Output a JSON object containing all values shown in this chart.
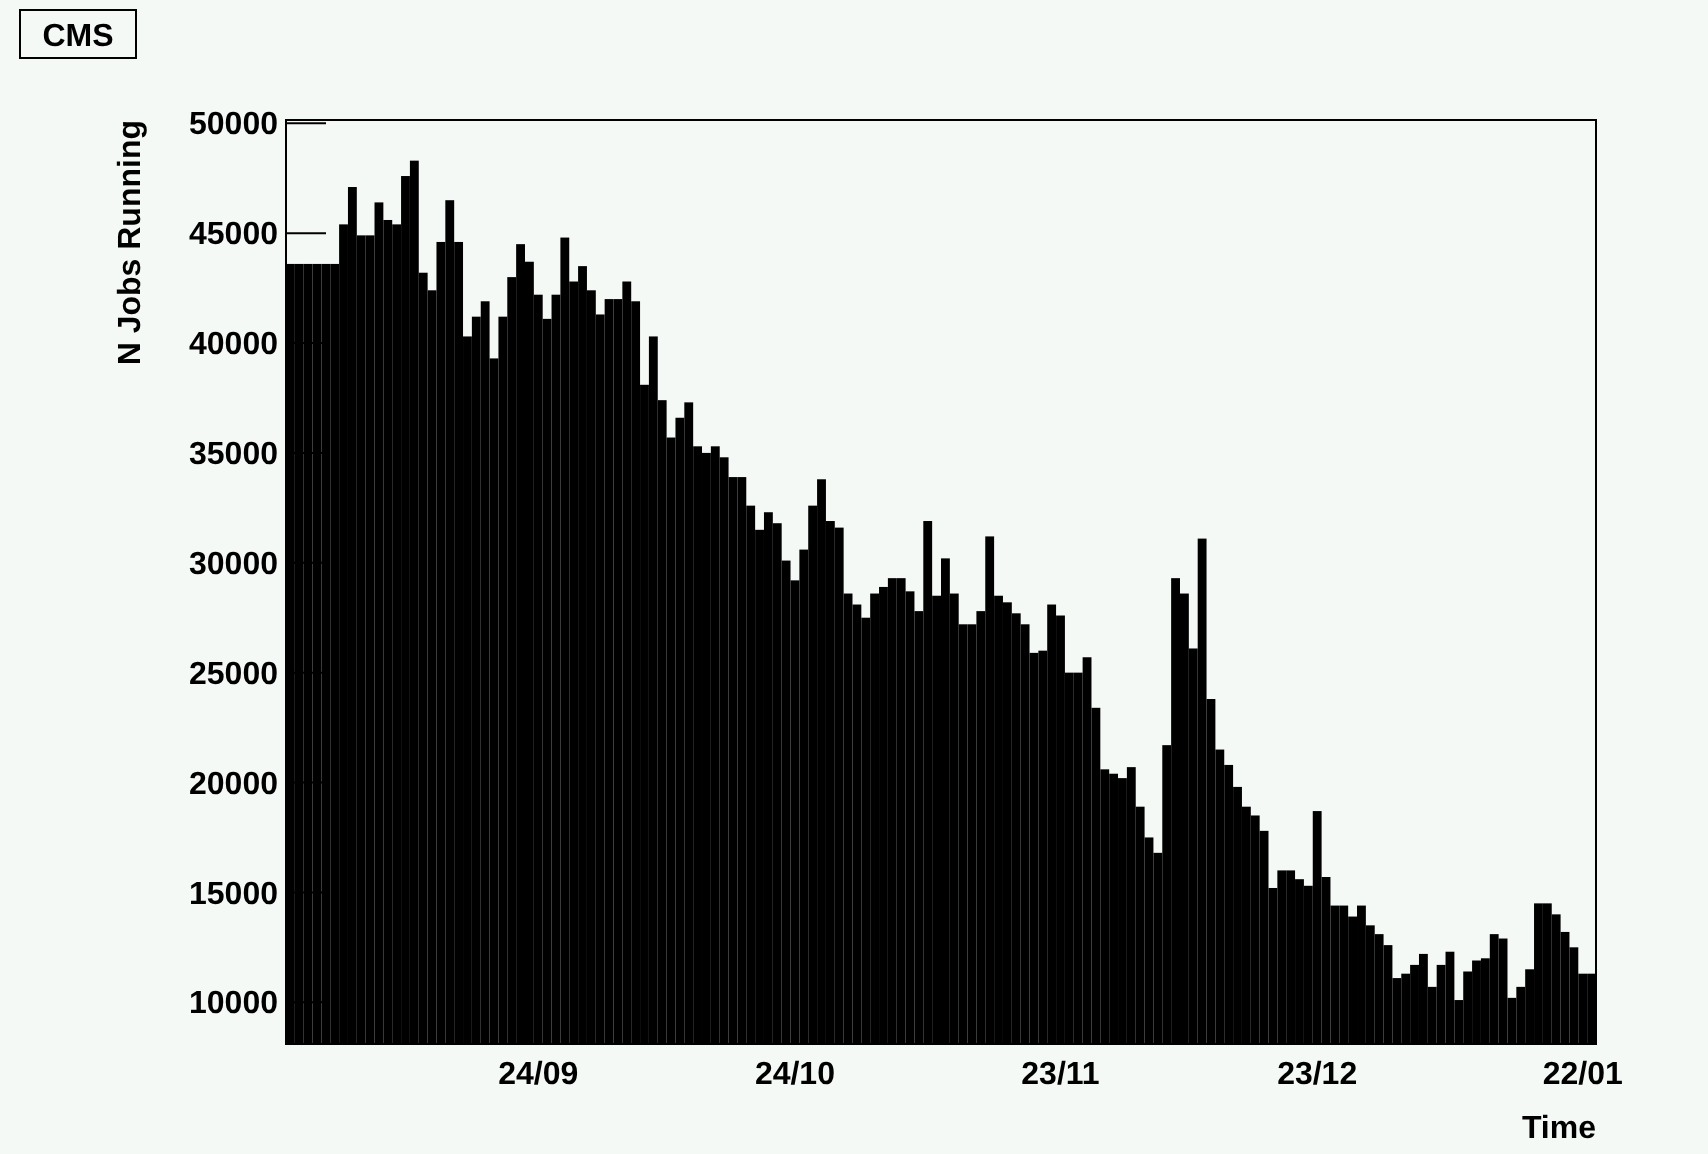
{
  "chart_data": {
    "type": "bar",
    "title": "CMS",
    "xlabel": "Time",
    "ylabel": "N Jobs Running",
    "color": "#000000",
    "categories": [
      null,
      null,
      null,
      null,
      null,
      null,
      null,
      null,
      null,
      null,
      null,
      null,
      null,
      null,
      null,
      null,
      null,
      null,
      null,
      null,
      null,
      null,
      null,
      null,
      null,
      null,
      null,
      null,
      "24/09",
      null,
      null,
      null,
      null,
      null,
      null,
      null,
      null,
      null,
      null,
      null,
      null,
      null,
      null,
      null,
      null,
      null,
      null,
      null,
      null,
      null,
      null,
      null,
      null,
      null,
      null,
      null,
      null,
      "24/10",
      null,
      null,
      null,
      null,
      null,
      null,
      null,
      null,
      null,
      null,
      null,
      null,
      null,
      null,
      null,
      null,
      null,
      null,
      null,
      null,
      null,
      null,
      null,
      null,
      null,
      null,
      null,
      null,
      null,
      "23/11",
      null,
      null,
      null,
      null,
      null,
      null,
      null,
      null,
      null,
      null,
      null,
      null,
      null,
      null,
      null,
      null,
      null,
      null,
      null,
      null,
      null,
      null,
      null,
      null,
      null,
      null,
      null,
      null,
      "23/12",
      null,
      null,
      null,
      null,
      null,
      null,
      null,
      null,
      null,
      null,
      null,
      null,
      null,
      null,
      null,
      null,
      null,
      null,
      null,
      null,
      null,
      null,
      null,
      null,
      null,
      null,
      null,
      null,
      null,
      "22/01",
      null
    ],
    "values": [
      43600,
      43600,
      43600,
      43600,
      43600,
      43600,
      45400,
      47100,
      44900,
      44900,
      46400,
      45600,
      45400,
      47600,
      48300,
      43200,
      42400,
      44600,
      46500,
      44600,
      40300,
      41200,
      41900,
      39300,
      41200,
      43000,
      44500,
      43700,
      42200,
      41100,
      42200,
      44800,
      42800,
      43500,
      42400,
      41300,
      42000,
      42000,
      42800,
      41900,
      38100,
      40300,
      37400,
      35700,
      36600,
      37300,
      35300,
      35000,
      35300,
      34800,
      33900,
      33900,
      32600,
      31500,
      32300,
      31800,
      30100,
      29200,
      30600,
      32600,
      33800,
      31900,
      31600,
      28600,
      28100,
      27500,
      28600,
      28900,
      29300,
      29300,
      28700,
      27800,
      31900,
      28500,
      30200,
      28600,
      27200,
      27200,
      27800,
      31200,
      28500,
      28200,
      27700,
      27200,
      25900,
      26000,
      28100,
      27600,
      25000,
      25000,
      25700,
      23400,
      20600,
      20400,
      20200,
      20700,
      18900,
      17500,
      16800,
      21700,
      29300,
      28600,
      26100,
      31100,
      23800,
      21500,
      20800,
      19800,
      18900,
      18500,
      17800,
      15200,
      16000,
      16000,
      15600,
      15300,
      18700,
      15700,
      14400,
      14400,
      13900,
      14400,
      13500,
      13100,
      12600,
      11100,
      11300,
      11700,
      12200,
      10700,
      11700,
      12300,
      10100,
      11400,
      11900,
      12000,
      13100,
      12900,
      10200,
      10700,
      11500,
      14500,
      14500,
      14000,
      13200,
      12500,
      11300,
      11300
    ],
    "ylim": [
      8100,
      50150
    ],
    "yticks": [
      10000,
      15000,
      20000,
      25000,
      30000,
      35000,
      40000,
      45000,
      50000
    ]
  }
}
